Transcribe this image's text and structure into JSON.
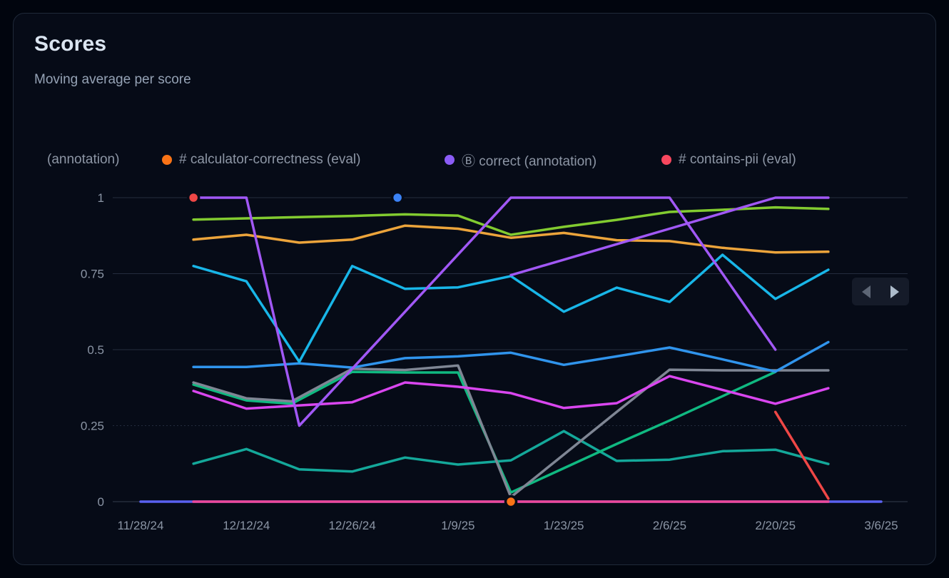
{
  "card": {
    "title": "Scores",
    "subtitle": "Moving average per score"
  },
  "legend": {
    "items": [
      {
        "label": "(annotation)",
        "color": null
      },
      {
        "label": "# calculator-correctness (eval)",
        "color": "#f97316"
      },
      {
        "label": "Ⓑ correct (annotation)",
        "color": "#8b5cf6"
      },
      {
        "label": "# contains-pii (eval)",
        "color": "#f7475e"
      }
    ]
  },
  "chart_data": {
    "type": "line",
    "title": "Scores",
    "subtitle": "Moving average per score",
    "xlabel": "",
    "ylabel": "",
    "ylim": [
      0,
      1
    ],
    "grid": "horizontal",
    "x_ticks": [
      {
        "day": 0,
        "label": "11/28/24"
      },
      {
        "day": 14,
        "label": "12/12/24"
      },
      {
        "day": 28,
        "label": "12/26/24"
      },
      {
        "day": 42,
        "label": "1/9/25"
      },
      {
        "day": 56,
        "label": "1/23/25"
      },
      {
        "day": 70,
        "label": "2/6/25"
      },
      {
        "day": 84,
        "label": "2/20/25"
      },
      {
        "day": 98,
        "label": "3/6/25"
      }
    ],
    "y_ticks": [
      {
        "value": 1,
        "label": "1",
        "style": "solid"
      },
      {
        "value": 0.75,
        "label": "0.75",
        "style": "solid"
      },
      {
        "value": 0.5,
        "label": "0.5",
        "style": "solid"
      },
      {
        "value": 0.25,
        "label": "0.25",
        "style": "dotted"
      },
      {
        "value": 0,
        "label": "0",
        "style": "baseline"
      }
    ],
    "series": [
      {
        "name": "indigo-line",
        "color": "#5a61f0",
        "points": [
          [
            0,
            0
          ],
          [
            98,
            0
          ]
        ]
      },
      {
        "name": "pink-line",
        "color": "#ec4899",
        "points": [
          [
            7,
            0
          ],
          [
            91,
            0
          ]
        ]
      },
      {
        "name": "teal-line",
        "color": "#14a89a",
        "points": [
          [
            7,
            0.125
          ],
          [
            14,
            0.173
          ],
          [
            21,
            0.106
          ],
          [
            28,
            0.099
          ],
          [
            35,
            0.145
          ],
          [
            42,
            0.122
          ],
          [
            49,
            0.136
          ],
          [
            56,
            0.232
          ],
          [
            63,
            0.134
          ],
          [
            70,
            0.138
          ],
          [
            77,
            0.166
          ],
          [
            84,
            0.171
          ],
          [
            91,
            0.124
          ]
        ]
      },
      {
        "name": "emerald-line",
        "color": "#10b981",
        "points": [
          [
            7,
            0.385
          ],
          [
            14,
            0.333
          ],
          [
            20,
            0.322
          ],
          [
            28,
            0.427
          ],
          [
            35,
            0.425
          ],
          [
            42,
            0.425
          ],
          [
            49,
            0.03
          ],
          [
            56,
            0.11
          ],
          [
            63,
            0.19
          ],
          [
            70,
            0.267
          ],
          [
            77,
            0.347
          ],
          [
            84,
            0.427
          ]
        ]
      },
      {
        "name": "gray-line",
        "color": "#7f8694",
        "points": [
          [
            7,
            0.392
          ],
          [
            14,
            0.34
          ],
          [
            20,
            0.33
          ],
          [
            28,
            0.437
          ],
          [
            35,
            0.433
          ],
          [
            42,
            0.448
          ],
          [
            49,
            0.015
          ],
          [
            56,
            0.155
          ],
          [
            63,
            0.295
          ],
          [
            70,
            0.434
          ],
          [
            77,
            0.432
          ],
          [
            84,
            0.432
          ],
          [
            91,
            0.432
          ]
        ]
      },
      {
        "name": "magenta-line",
        "color": "#d946ef",
        "points": [
          [
            7,
            0.364
          ],
          [
            14,
            0.306
          ],
          [
            20,
            0.315
          ],
          [
            28,
            0.327
          ],
          [
            35,
            0.392
          ],
          [
            42,
            0.378
          ],
          [
            49,
            0.357
          ],
          [
            56,
            0.308
          ],
          [
            63,
            0.324
          ],
          [
            70,
            0.413
          ],
          [
            84,
            0.322
          ],
          [
            91,
            0.373
          ]
        ]
      },
      {
        "name": "blue-line",
        "color": "#3094ec",
        "points": [
          [
            7,
            0.443
          ],
          [
            14,
            0.443
          ],
          [
            21,
            0.455
          ],
          [
            28,
            0.441
          ],
          [
            35,
            0.472
          ],
          [
            42,
            0.478
          ],
          [
            49,
            0.49
          ],
          [
            56,
            0.45
          ],
          [
            63,
            0.478
          ],
          [
            70,
            0.507
          ],
          [
            77,
            0.468
          ],
          [
            84,
            0.428
          ],
          [
            91,
            0.525
          ]
        ]
      },
      {
        "name": "cyan-line",
        "color": "#18b6e8",
        "points": [
          [
            7,
            0.775
          ],
          [
            14,
            0.725
          ],
          [
            21,
            0.46
          ],
          [
            28,
            0.775
          ],
          [
            35,
            0.7
          ],
          [
            42,
            0.705
          ],
          [
            49,
            0.742
          ],
          [
            56,
            0.625
          ],
          [
            63,
            0.704
          ],
          [
            70,
            0.657
          ],
          [
            77,
            0.812
          ],
          [
            84,
            0.667
          ],
          [
            91,
            0.763
          ]
        ]
      },
      {
        "name": "amber-line",
        "color": "#eca43b",
        "points": [
          [
            7,
            0.862
          ],
          [
            14,
            0.878
          ],
          [
            21,
            0.852
          ],
          [
            28,
            0.862
          ],
          [
            35,
            0.908
          ],
          [
            42,
            0.898
          ],
          [
            49,
            0.868
          ],
          [
            56,
            0.884
          ],
          [
            63,
            0.86
          ],
          [
            70,
            0.857
          ],
          [
            77,
            0.835
          ],
          [
            84,
            0.82
          ],
          [
            91,
            0.822
          ]
        ]
      },
      {
        "name": "lime-line",
        "color": "#82cb30",
        "points": [
          [
            7,
            0.928
          ],
          [
            14,
            0.932
          ],
          [
            21,
            0.936
          ],
          [
            28,
            0.94
          ],
          [
            35,
            0.945
          ],
          [
            42,
            0.941
          ],
          [
            49,
            0.878
          ],
          [
            56,
            0.904
          ],
          [
            63,
            0.927
          ],
          [
            70,
            0.953
          ],
          [
            77,
            0.96
          ],
          [
            84,
            0.968
          ],
          [
            91,
            0.963
          ]
        ]
      },
      {
        "name": "purple-line-rising",
        "color": "#a158f5",
        "points": [
          [
            49,
            0.745
          ],
          [
            56,
            0.796
          ],
          [
            63,
            0.847
          ],
          [
            70,
            0.898
          ],
          [
            77,
            0.949
          ],
          [
            84,
            1.0
          ],
          [
            91,
            1.0
          ]
        ]
      },
      {
        "name": "purple-line-main",
        "color": "#a158f5",
        "points": [
          [
            7,
            1.0
          ],
          [
            14,
            1.0
          ],
          [
            21,
            0.25
          ],
          [
            28,
            0.437
          ],
          [
            35,
            0.625
          ],
          [
            42,
            0.813
          ],
          [
            49,
            1.0
          ],
          [
            56,
            1.0
          ],
          [
            63,
            1.0
          ],
          [
            70,
            1.0
          ],
          [
            77,
            0.75
          ],
          [
            84,
            0.5
          ]
        ]
      },
      {
        "name": "red-line",
        "color": "#ef4746",
        "points": [
          [
            84,
            0.295
          ],
          [
            91,
            0.01
          ]
        ]
      }
    ],
    "markers": [
      {
        "name": "red-point-marker",
        "color": "#ef4746",
        "day": 7,
        "value": 1
      },
      {
        "name": "blue-point-marker",
        "color": "#3b82f6",
        "day": 34,
        "value": 1
      },
      {
        "name": "orange-point-marker",
        "color": "#f97316",
        "day": 49,
        "value": 0
      }
    ]
  },
  "colors": {
    "card_bg": "#060b17",
    "card_border": "#1f2939",
    "grid": "#242c3e",
    "baseline": "#343c4e",
    "axis_text": "#8b95a5"
  }
}
